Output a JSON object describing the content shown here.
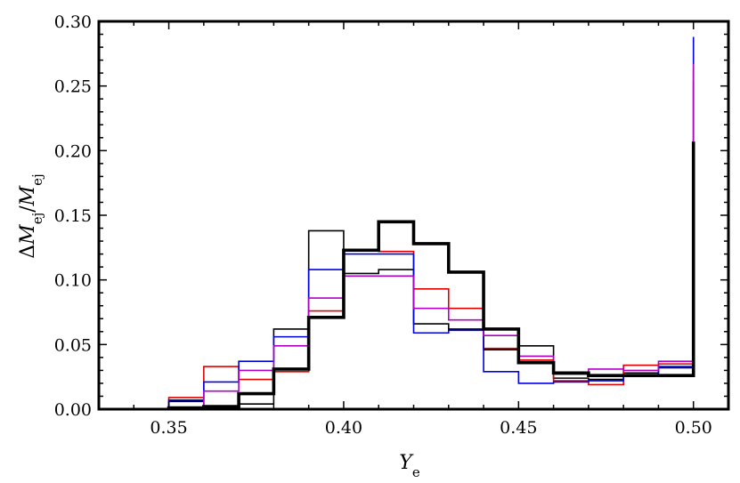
{
  "chart_data": {
    "type": "histogram-step",
    "xlabel": "Y_e",
    "ylabel": "ΔM_ej/M_ej",
    "xlim": [
      0.33,
      0.51
    ],
    "ylim": [
      0.0,
      0.3
    ],
    "x_ticks": [
      "0.35",
      "0.40",
      "0.45",
      "0.50"
    ],
    "y_ticks": [
      "0.00",
      "0.05",
      "0.10",
      "0.15",
      "0.20",
      "0.25",
      "0.30"
    ],
    "bin_edges": [
      0.35,
      0.36,
      0.37,
      0.38,
      0.39,
      0.4,
      0.41,
      0.42,
      0.43,
      0.44,
      0.45,
      0.46,
      0.47,
      0.48,
      0.49,
      0.5
    ],
    "series": [
      {
        "color": "#000000",
        "stroke": "thick",
        "values": [
          0.001,
          0.002,
          0.012,
          0.031,
          0.071,
          0.123,
          0.145,
          0.128,
          0.106,
          0.062,
          0.036,
          0.028,
          0.026,
          0.026,
          0.026,
          0.207
        ]
      },
      {
        "color": "#000000",
        "stroke": "thin",
        "values": [
          0.006,
          0.002,
          0.004,
          0.062,
          0.138,
          0.105,
          0.108,
          0.066,
          0.062,
          0.046,
          0.049,
          0.024,
          0.023,
          0.028,
          0.032,
          0.254
        ]
      },
      {
        "color": "#e00000",
        "stroke": "thin",
        "values": [
          0.009,
          0.033,
          0.023,
          0.029,
          0.076,
          0.123,
          0.122,
          0.093,
          0.078,
          0.047,
          0.038,
          0.022,
          0.019,
          0.034,
          0.035,
          0.264
        ]
      },
      {
        "color": "#0000e6",
        "stroke": "thin",
        "values": [
          0.007,
          0.021,
          0.037,
          0.056,
          0.108,
          0.12,
          0.12,
          0.059,
          0.061,
          0.029,
          0.02,
          0.021,
          0.022,
          0.026,
          0.033,
          0.288
        ]
      },
      {
        "color": "#b000c8",
        "stroke": "thin",
        "values": [
          0.0,
          0.014,
          0.03,
          0.049,
          0.086,
          0.103,
          0.103,
          0.078,
          0.069,
          0.057,
          0.041,
          0.027,
          0.031,
          0.03,
          0.037,
          0.267
        ]
      }
    ]
  }
}
